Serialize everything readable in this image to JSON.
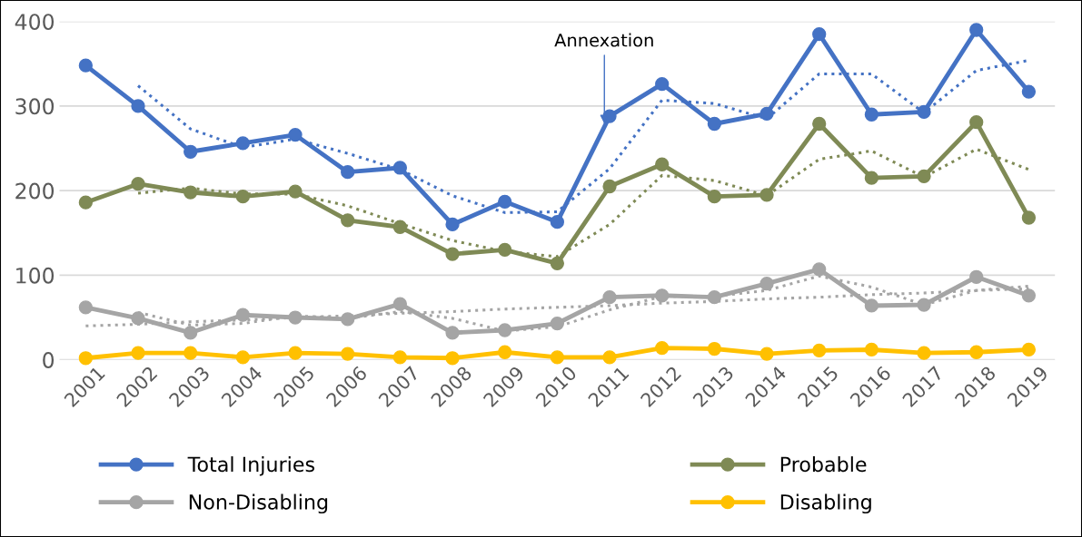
{
  "chart_data": {
    "type": "line",
    "categories": [
      "2001",
      "2002",
      "2003",
      "2004",
      "2005",
      "2006",
      "2007",
      "2008",
      "2009",
      "2010",
      "2011",
      "2012",
      "2013",
      "2014",
      "2015",
      "2016",
      "2017",
      "2018",
      "2019"
    ],
    "series": [
      {
        "name": "Total Injuries",
        "color": "#4472c4",
        "values": [
          348,
          300,
          246,
          256,
          266,
          222,
          227,
          160,
          187,
          163,
          288,
          326,
          279,
          291,
          385,
          290,
          293,
          390,
          317
        ]
      },
      {
        "name": "Probable",
        "color": "#7f8a55",
        "values": [
          186,
          208,
          198,
          193,
          199,
          165,
          157,
          125,
          130,
          114,
          205,
          231,
          193,
          195,
          279,
          215,
          217,
          281,
          168
        ]
      },
      {
        "name": "Non-Disabling",
        "color": "#a5a5a5",
        "values": [
          62,
          49,
          32,
          53,
          50,
          48,
          66,
          32,
          35,
          43,
          74,
          76,
          74,
          90,
          107,
          64,
          65,
          98,
          76
        ]
      },
      {
        "name": "Disabling",
        "color": "#ffc000",
        "values": [
          2,
          8,
          8,
          3,
          8,
          7,
          3,
          2,
          9,
          3,
          3,
          14,
          13,
          7,
          11,
          12,
          8,
          9,
          12
        ]
      },
      {
        "type": "line",
        "color": "#4472c4",
        "line_style": "dotted",
        "marker": "none",
        "values": [
          null,
          324,
          273,
          251,
          261,
          244,
          225,
          194,
          174,
          175,
          226,
          307,
          303,
          285,
          338,
          338,
          292,
          342,
          354
        ]
      },
      {
        "type": "line",
        "color": "#7f8a55",
        "line_style": "dotted",
        "marker": "none",
        "values": [
          null,
          197,
          203,
          196,
          196,
          182,
          161,
          141,
          128,
          122,
          160,
          218,
          212,
          194,
          237,
          247,
          216,
          249,
          225
        ]
      },
      {
        "type": "line",
        "color": "#a5a5a5",
        "line_style": "dotted",
        "marker": "none",
        "values": [
          null,
          56,
          41,
          43,
          52,
          49,
          57,
          49,
          34,
          39,
          59,
          75,
          75,
          82,
          99,
          86,
          65,
          82,
          87
        ]
      },
      {
        "type": "line",
        "color": "#a5a5a5",
        "line_style": "dotted",
        "marker": "none",
        "values": [
          40,
          42,
          45,
          47,
          50,
          52,
          55,
          57,
          60,
          62,
          64,
          67,
          69,
          72,
          74,
          77,
          79,
          82,
          84
        ]
      }
    ],
    "ylim": [
      0,
      400
    ],
    "yticks": [
      0,
      100,
      200,
      300,
      400
    ],
    "grid": "y",
    "legend": "bottom",
    "marker": "circle",
    "line_style": "solid",
    "annotations": [
      {
        "text": "Annexation",
        "x": "2011",
        "y": 288
      }
    ]
  }
}
